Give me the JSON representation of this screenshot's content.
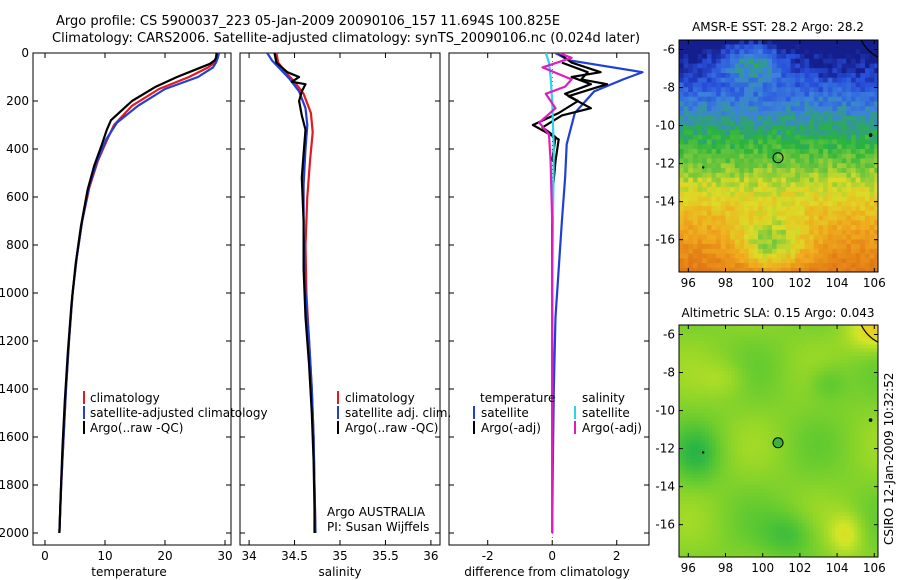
{
  "title": {
    "line1": "Argo profile: CS 5900037_223 05-Jan-2009 20090106_157 11.694S 100.825E",
    "line2": "Climatology: CARS2006. Satellite-adjusted climatology: synTS_20090106.nc (0.024d later)"
  },
  "colors": {
    "climatology": "#e41a1c",
    "satellite": "#1f3fd8",
    "argo": "#000000",
    "sat_diff": "#2fd4e8",
    "argo_diff": "#e01cc0"
  },
  "credit": "CSIRO 12-Jan-2009 10:32:52",
  "chart_data": [
    {
      "type": "line",
      "name": "temperature-profile",
      "xlabel": "temperature",
      "xlim": [
        -2,
        31
      ],
      "xticks": [
        0,
        10,
        20,
        30
      ],
      "ylim": [
        0,
        2050
      ],
      "yticks": [
        0,
        200,
        400,
        600,
        800,
        1000,
        1200,
        1400,
        1600,
        1800,
        2000
      ],
      "y_reversed": true,
      "legend": [
        "climatology",
        "satellite-adjusted climatology",
        "Argo(..raw -QC)"
      ],
      "series": [
        {
          "name": "climatology",
          "color_key": "climatology",
          "points": [
            [
              28.9,
              0
            ],
            [
              28.7,
              20
            ],
            [
              28.3,
              40
            ],
            [
              27.2,
              60
            ],
            [
              24,
              100
            ],
            [
              19,
              150
            ],
            [
              14.5,
              220
            ],
            [
              11.5,
              300
            ],
            [
              10.2,
              370
            ],
            [
              8.8,
              450
            ],
            [
              7.4,
              560
            ],
            [
              6.2,
              700
            ],
            [
              5.3,
              850
            ],
            [
              4.6,
              1000
            ],
            [
              4,
              1200
            ],
            [
              3.5,
              1400
            ],
            [
              3.1,
              1600
            ],
            [
              2.7,
              1800
            ],
            [
              2.4,
              2000
            ]
          ]
        },
        {
          "name": "satellite-adjusted climatology",
          "color_key": "satellite",
          "points": [
            [
              29,
              0
            ],
            [
              28.8,
              20
            ],
            [
              28.5,
              40
            ],
            [
              28,
              60
            ],
            [
              25.5,
              100
            ],
            [
              20,
              150
            ],
            [
              15.5,
              220
            ],
            [
              12,
              290
            ],
            [
              10.2,
              360
            ],
            [
              8.7,
              450
            ],
            [
              7.3,
              560
            ],
            [
              6.2,
              700
            ],
            [
              5.3,
              850
            ],
            [
              4.6,
              1000
            ],
            [
              4,
              1200
            ],
            [
              3.5,
              1400
            ],
            [
              3.1,
              1600
            ],
            [
              2.7,
              1800
            ],
            [
              2.4,
              2000
            ]
          ]
        },
        {
          "name": "Argo(..raw -QC)",
          "color_key": "argo",
          "points": [
            [
              28.6,
              0
            ],
            [
              28.5,
              20
            ],
            [
              28.3,
              30
            ],
            [
              27.5,
              45
            ],
            [
              25,
              70
            ],
            [
              22,
              100
            ],
            [
              18.5,
              140
            ],
            [
              14.5,
              200
            ],
            [
              11,
              280
            ],
            [
              10.3,
              320
            ],
            [
              9.5,
              380
            ],
            [
              8.2,
              470
            ],
            [
              7.1,
              570
            ],
            [
              6,
              720
            ],
            [
              5.1,
              880
            ],
            [
              4.4,
              1050
            ],
            [
              3.8,
              1250
            ],
            [
              3.3,
              1450
            ],
            [
              2.9,
              1650
            ],
            [
              2.6,
              1850
            ],
            [
              2.4,
              2000
            ]
          ]
        }
      ]
    },
    {
      "type": "line",
      "name": "salinity-profile",
      "xlabel": "salinity",
      "xlim": [
        33.9,
        36.1
      ],
      "xticks": [
        34,
        34.5,
        35,
        35.5,
        36
      ],
      "ylim": [
        0,
        2050
      ],
      "y_reversed": true,
      "legend": [
        "climatology",
        "satellite adj. clim.",
        "Argo(..raw -QC)"
      ],
      "annotation": [
        "Argo AUSTRALIA",
        "PI: Susan Wijffels"
      ],
      "series": [
        {
          "name": "climatology",
          "color_key": "climatology",
          "points": [
            [
              34.3,
              0
            ],
            [
              34.32,
              40
            ],
            [
              34.4,
              80
            ],
            [
              34.5,
              120
            ],
            [
              34.6,
              170
            ],
            [
              34.68,
              250
            ],
            [
              34.7,
              330
            ],
            [
              34.67,
              450
            ],
            [
              34.64,
              600
            ],
            [
              34.62,
              800
            ],
            [
              34.63,
              1000
            ],
            [
              34.66,
              1200
            ],
            [
              34.69,
              1400
            ],
            [
              34.71,
              1600
            ],
            [
              34.72,
              1800
            ],
            [
              34.73,
              2000
            ]
          ]
        },
        {
          "name": "satellite adj. clim.",
          "color_key": "satellite",
          "points": [
            [
              34.2,
              0
            ],
            [
              34.25,
              30
            ],
            [
              34.35,
              70
            ],
            [
              34.45,
              110
            ],
            [
              34.55,
              160
            ],
            [
              34.62,
              230
            ],
            [
              34.64,
              300
            ],
            [
              34.62,
              400
            ],
            [
              34.6,
              550
            ],
            [
              34.6,
              750
            ],
            [
              34.62,
              1000
            ],
            [
              34.66,
              1200
            ],
            [
              34.69,
              1400
            ],
            [
              34.71,
              1600
            ],
            [
              34.72,
              1800
            ],
            [
              34.73,
              2000
            ]
          ]
        },
        {
          "name": "Argo(..raw -QC)",
          "color_key": "argo",
          "points": [
            [
              34.28,
              0
            ],
            [
              34.3,
              40
            ],
            [
              34.42,
              80
            ],
            [
              34.55,
              100
            ],
            [
              34.47,
              120
            ],
            [
              34.62,
              130
            ],
            [
              34.58,
              160
            ],
            [
              34.55,
              200
            ],
            [
              34.58,
              260
            ],
            [
              34.62,
              320
            ],
            [
              34.6,
              420
            ],
            [
              34.58,
              520
            ],
            [
              34.6,
              700
            ],
            [
              34.6,
              900
            ],
            [
              34.62,
              1100
            ],
            [
              34.66,
              1300
            ],
            [
              34.69,
              1500
            ],
            [
              34.71,
              1700
            ],
            [
              34.72,
              1900
            ],
            [
              34.72,
              2000
            ]
          ]
        }
      ]
    },
    {
      "type": "line",
      "name": "difference-profile",
      "xlabel": "difference from climatology",
      "xlim": [
        -3.2,
        3
      ],
      "xticks": [
        -2,
        0,
        2
      ],
      "ylim": [
        0,
        2050
      ],
      "y_reversed": true,
      "legend_left_title": "temperature",
      "legend_right_title": "salinity",
      "legend_left": [
        "satellite",
        "Argo(-adj)"
      ],
      "legend_right": [
        "satellite",
        "Argo(-adj)"
      ],
      "series": [
        {
          "name": "temperature satellite",
          "color_key": "satellite",
          "points": [
            [
              0.1,
              0
            ],
            [
              0.5,
              30
            ],
            [
              2.8,
              80
            ],
            [
              2.2,
              110
            ],
            [
              1.3,
              160
            ],
            [
              0.7,
              250
            ],
            [
              0.45,
              380
            ],
            [
              0.4,
              520
            ],
            [
              0.3,
              700
            ],
            [
              0.2,
              900
            ],
            [
              0.1,
              1100
            ],
            [
              0.05,
              1400
            ],
            [
              0.02,
              1700
            ],
            [
              0,
              2000
            ]
          ]
        },
        {
          "name": "temperature Argo(-adj)",
          "color_key": "argo",
          "points": [
            [
              0.2,
              0
            ],
            [
              0.6,
              40
            ],
            [
              1.5,
              80
            ],
            [
              0.6,
              100
            ],
            [
              1.2,
              130
            ],
            [
              0.4,
              170
            ],
            [
              0.8,
              200
            ],
            [
              0.2,
              250
            ],
            [
              -0.6,
              300
            ],
            [
              -0.2,
              330
            ],
            [
              0.2,
              360
            ],
            [
              0.1,
              450
            ],
            [
              0,
              600
            ],
            [
              0,
              2000
            ]
          ]
        },
        {
          "name": "temperature Argo(-adj) b",
          "color_key": "argo",
          "points": [
            [
              0.3,
              40
            ],
            [
              1.1,
              80
            ],
            [
              0.9,
              110
            ],
            [
              1.7,
              130
            ],
            [
              0.5,
              180
            ],
            [
              1.2,
              230
            ],
            [
              0.3,
              260
            ],
            [
              -0.3,
              310
            ],
            [
              0.1,
              350
            ],
            [
              0,
              450
            ]
          ]
        },
        {
          "name": "salinity satellite",
          "color_key": "sat_diff",
          "points": [
            [
              -0.2,
              0
            ],
            [
              -0.1,
              40
            ],
            [
              -0.05,
              100
            ],
            [
              0,
              200
            ],
            [
              0.05,
              400
            ],
            [
              0.02,
              700
            ],
            [
              0,
              1000
            ],
            [
              0,
              1400
            ],
            [
              0,
              2000
            ]
          ]
        },
        {
          "name": "salinity Argo(-adj)",
          "color_key": "argo_diff",
          "points": [
            [
              0.2,
              0
            ],
            [
              0.6,
              20
            ],
            [
              -0.3,
              60
            ],
            [
              0.6,
              110
            ],
            [
              0.4,
              140
            ],
            [
              -0.2,
              170
            ],
            [
              0.1,
              230
            ],
            [
              -0.4,
              290
            ],
            [
              -0.1,
              340
            ],
            [
              -0.05,
              450
            ],
            [
              0,
              700
            ],
            [
              0,
              1100
            ],
            [
              0,
              1500
            ],
            [
              0,
              2000
            ]
          ]
        }
      ]
    },
    {
      "type": "heatmap",
      "name": "amsr-sst-map",
      "title": "AMSR-E SST: 28.2 Argo: 28.2",
      "xlim": [
        95.5,
        106.2
      ],
      "ylim": [
        -17.7,
        -5.5
      ],
      "xticks": [
        96,
        98,
        100,
        102,
        104,
        106
      ],
      "yticks": [
        -6,
        -8,
        -10,
        -12,
        -14,
        -16
      ],
      "marker": {
        "lon": 100.825,
        "lat": -11.694
      }
    },
    {
      "type": "heatmap",
      "name": "altimetric-sla-map",
      "title": "Altimetric SLA: 0.15 Argo: 0.043",
      "xlim": [
        95.5,
        106.2
      ],
      "ylim": [
        -17.7,
        -5.5
      ],
      "xticks": [
        96,
        98,
        100,
        102,
        104,
        106
      ],
      "yticks": [
        -6,
        -8,
        -10,
        -12,
        -14,
        -16
      ],
      "marker": {
        "lon": 100.825,
        "lat": -11.694
      }
    }
  ]
}
